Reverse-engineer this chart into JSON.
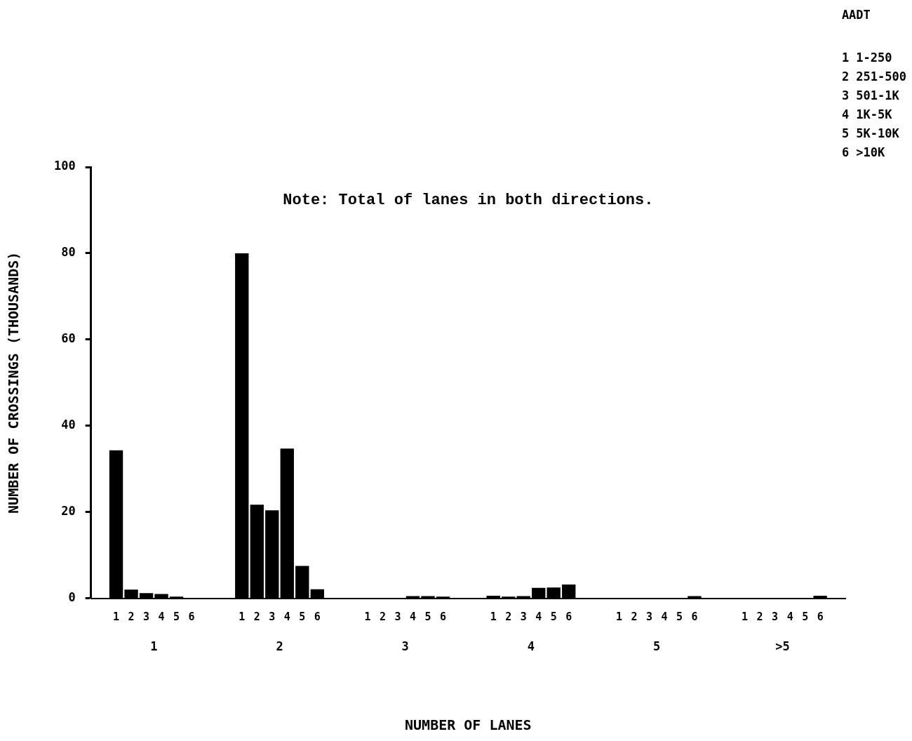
{
  "chart_data": {
    "type": "bar",
    "xlabel": "NUMBER OF LANES",
    "ylabel": "NUMBER OF CROSSINGS (THOUSANDS)",
    "legend_title": "AADT",
    "legend": "bottom",
    "grid": false,
    "annotations": [
      "Note: Total of lanes in both directions.",
      "1 1-250",
      "2 251-500",
      "3 501-1K",
      "4 1K-5K",
      "5 5K-10K",
      "6 >10K"
    ],
    "categories": [
      "1",
      "2",
      "3",
      "4",
      "5",
      ">5"
    ],
    "ylim": [
      0,
      100
    ],
    "yticks": [
      0,
      20,
      40,
      60,
      80,
      100
    ],
    "series": [
      {
        "name": "1",
        "color": "#000000",
        "values": [
          34.3,
          80,
          null,
          0.6,
          null,
          null
        ]
      },
      {
        "name": "2",
        "color": "#000000",
        "values": [
          2,
          21.7,
          null,
          0.4,
          null,
          null
        ]
      },
      {
        "name": "3",
        "color": "#000000",
        "values": [
          1.2,
          20.4,
          null,
          0.5,
          null,
          null
        ]
      },
      {
        "name": "4",
        "color": "#000000",
        "values": [
          1,
          34.7,
          0.5,
          2.4,
          null,
          null
        ]
      },
      {
        "name": "5",
        "color": "#000000",
        "values": [
          0.4,
          7.5,
          0.5,
          2.5,
          null,
          null
        ]
      },
      {
        "name": "6",
        "color": "#000000",
        "values": [
          null,
          2.1,
          0.4,
          3.2,
          0.5,
          0.6
        ]
      }
    ]
  }
}
